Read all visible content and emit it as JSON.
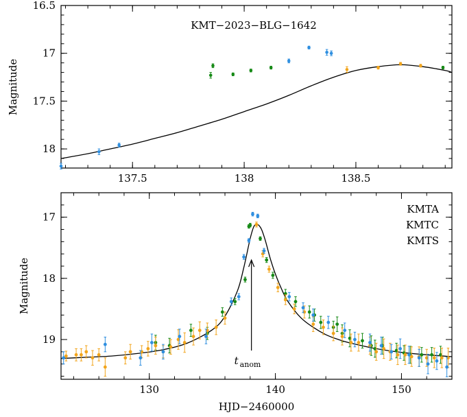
{
  "colors": {
    "KMTA": "#178a17",
    "KMTC": "#f2a51c",
    "KMTS": "#2f8fe0",
    "model": "#000000",
    "frame": "#000000"
  },
  "chart_data": [
    {
      "type": "scatter",
      "panel": "top",
      "title": "KMT−2023−BLG−1642",
      "xlabel": "",
      "ylabel": "Magnitude",
      "xlim": [
        137.18,
        138.93
      ],
      "ylim": [
        18.2,
        16.5
      ],
      "y_inverted": true,
      "x_ticks": [
        137.5,
        138,
        138.5
      ],
      "x_tick_labels": [
        "137.5",
        "138",
        "138.5"
      ],
      "y_ticks": [
        16.5,
        17,
        17.5,
        18
      ],
      "y_tick_labels": [
        "16.5",
        "17",
        "17.5",
        "18"
      ],
      "legend": "none",
      "series": [
        {
          "name": "KMTA",
          "color_key": "KMTA",
          "x": [
            137.85,
            137.86,
            137.95,
            138.03,
            138.12,
            138.89
          ],
          "y": [
            17.23,
            17.13,
            17.22,
            17.18,
            17.15,
            17.15
          ],
          "err": [
            0.03,
            0.02,
            0.015,
            0.015,
            0.015,
            0.015
          ]
        },
        {
          "name": "KMTC",
          "color_key": "KMTC",
          "x": [
            138.46,
            138.6,
            138.7,
            138.79
          ],
          "y": [
            17.17,
            17.15,
            17.11,
            17.13
          ],
          "err": [
            0.03,
            0.015,
            0.015,
            0.015
          ]
        },
        {
          "name": "KMTS",
          "color_key": "KMTS",
          "x": [
            137.18,
            137.35,
            137.44,
            138.2,
            138.29,
            138.37,
            138.39
          ],
          "y": [
            18.18,
            18.03,
            17.96,
            17.08,
            16.94,
            16.99,
            17.0
          ],
          "err": [
            0.03,
            0.03,
            0.02,
            0.02,
            0.015,
            0.03,
            0.025
          ]
        }
      ],
      "model": {
        "x": [
          137.18,
          137.3,
          137.4,
          137.5,
          137.6,
          137.7,
          137.8,
          137.9,
          138.0,
          138.1,
          138.2,
          138.3,
          138.4,
          138.5,
          138.6,
          138.7,
          138.8,
          138.9,
          138.93
        ],
        "y": [
          18.1,
          18.05,
          18.0,
          17.95,
          17.89,
          17.83,
          17.76,
          17.69,
          17.61,
          17.53,
          17.44,
          17.34,
          17.25,
          17.18,
          17.14,
          17.12,
          17.14,
          17.18,
          17.2
        ]
      }
    },
    {
      "type": "scatter",
      "panel": "bottom",
      "title": "",
      "xlabel": "HJD−2460000",
      "ylabel": "Magnitude",
      "xlim": [
        123,
        154
      ],
      "ylim": [
        19.65,
        16.6
      ],
      "y_inverted": true,
      "x_ticks": [
        130,
        140,
        150
      ],
      "x_tick_labels": [
        "130",
        "140",
        "150"
      ],
      "y_ticks": [
        17,
        18,
        19
      ],
      "y_tick_labels": [
        "17",
        "18",
        "19"
      ],
      "legend": "top-right",
      "legend_entries": [
        "KMTA",
        "KMTC",
        "KMTS"
      ],
      "annotation": {
        "text": "t",
        "subscript": "anom",
        "arrow_from": [
          138.1,
          19.18
        ],
        "arrow_to": [
          138.1,
          17.7
        ]
      },
      "series": [
        {
          "name": "KMTA",
          "color_key": "KMTA",
          "x": [
            130.5,
            131.6,
            133.3,
            134.6,
            135.8,
            136.8,
            137.6,
            137.9,
            138.0,
            138.8,
            139.3,
            139.8,
            140.8,
            141.6,
            142.7,
            143.1,
            143.6,
            144.6,
            144.9,
            145.3,
            145.9,
            146.9,
            147.6,
            147.9,
            148.5,
            149.6,
            150.2,
            150.7,
            151.6,
            152.4,
            153.1
          ],
          "y": [
            19.05,
            19.1,
            18.85,
            18.9,
            18.55,
            18.38,
            18.02,
            17.15,
            17.13,
            17.35,
            17.7,
            17.95,
            18.25,
            18.38,
            18.55,
            18.6,
            18.72,
            18.8,
            18.75,
            18.9,
            18.98,
            19.02,
            19.1,
            19.15,
            19.1,
            19.18,
            19.22,
            19.25,
            19.25,
            19.25,
            19.25
          ],
          "err": [
            0.12,
            0.12,
            0.1,
            0.1,
            0.07,
            0.05,
            0.04,
            0.03,
            0.03,
            0.03,
            0.04,
            0.05,
            0.07,
            0.08,
            0.1,
            0.1,
            0.1,
            0.1,
            0.12,
            0.14,
            0.14,
            0.12,
            0.16,
            0.14,
            0.14,
            0.12,
            0.12,
            0.14,
            0.12,
            0.12,
            0.14
          ]
        },
        {
          "name": "KMTC",
          "color_key": "KMTC",
          "x": [
            123.4,
            124.2,
            124.6,
            125.0,
            125.5,
            126.0,
            126.5,
            128.1,
            128.5,
            129.4,
            129.9,
            130.5,
            131.1,
            131.7,
            132.3,
            132.8,
            133.5,
            134.0,
            134.6,
            135.3,
            136.0,
            138.5,
            139.0,
            139.5,
            140.2,
            140.8,
            141.5,
            142.3,
            143.0,
            143.8,
            144.6,
            145.3,
            146.0,
            146.6,
            147.5,
            148.0,
            148.6,
            149.1,
            149.7,
            150.3,
            150.8,
            151.4,
            152.0,
            152.6,
            153.2,
            153.7
          ],
          "y": [
            19.27,
            19.25,
            19.25,
            19.2,
            19.3,
            19.25,
            19.45,
            19.3,
            19.2,
            19.2,
            19.15,
            19.1,
            19.2,
            19.12,
            19.0,
            19.05,
            18.95,
            18.85,
            18.85,
            18.8,
            18.65,
            17.12,
            17.6,
            17.85,
            18.15,
            18.35,
            18.5,
            18.55,
            18.75,
            18.8,
            18.9,
            18.95,
            19.05,
            19.05,
            19.1,
            19.2,
            19.15,
            19.2,
            19.25,
            19.25,
            19.28,
            19.28,
            19.3,
            19.3,
            19.3,
            19.3
          ],
          "err": [
            0.08,
            0.1,
            0.1,
            0.1,
            0.12,
            0.1,
            0.15,
            0.1,
            0.12,
            0.1,
            0.12,
            0.14,
            0.1,
            0.12,
            0.16,
            0.16,
            0.14,
            0.14,
            0.12,
            0.12,
            0.1,
            0.04,
            0.05,
            0.05,
            0.07,
            0.08,
            0.08,
            0.1,
            0.12,
            0.12,
            0.12,
            0.14,
            0.14,
            0.14,
            0.14,
            0.14,
            0.16,
            0.14,
            0.16,
            0.16,
            0.16,
            0.16,
            0.14,
            0.16,
            0.16,
            0.16
          ]
        },
        {
          "name": "KMTS",
          "color_key": "KMTS",
          "x": [
            123.2,
            126.5,
            129.3,
            130.2,
            131.1,
            132.4,
            134.5,
            136.5,
            137.1,
            137.5,
            137.9,
            138.2,
            138.6,
            139.1,
            141.1,
            142.2,
            143.0,
            144.2,
            145.5,
            146.3,
            147.5,
            148.4,
            149.2,
            149.9,
            150.6,
            151.4,
            152.1,
            152.8,
            153.6
          ],
          "y": [
            19.3,
            19.08,
            19.3,
            19.05,
            19.2,
            18.95,
            18.95,
            18.38,
            18.3,
            17.65,
            17.38,
            16.95,
            16.98,
            17.55,
            18.3,
            18.48,
            18.6,
            18.72,
            18.85,
            19.0,
            19.05,
            19.1,
            19.2,
            19.15,
            19.25,
            19.3,
            19.4,
            19.35,
            19.45
          ],
          "err": [
            0.1,
            0.12,
            0.12,
            0.14,
            0.12,
            0.12,
            0.12,
            0.06,
            0.05,
            0.04,
            0.03,
            0.03,
            0.03,
            0.04,
            0.07,
            0.08,
            0.1,
            0.1,
            0.12,
            0.12,
            0.14,
            0.14,
            0.12,
            0.16,
            0.14,
            0.14,
            0.16,
            0.14,
            0.16
          ]
        }
      ],
      "model": {
        "x": [
          123,
          125,
          127,
          129,
          131,
          133,
          135,
          136,
          137,
          137.5,
          138,
          138.3,
          138.6,
          138.9,
          139.2,
          139.6,
          140,
          140.5,
          141,
          142,
          143,
          144,
          145,
          146,
          148,
          150,
          152,
          154
        ],
        "y": [
          19.31,
          19.29,
          19.27,
          19.23,
          19.17,
          19.06,
          18.84,
          18.62,
          18.2,
          17.82,
          17.35,
          17.15,
          17.12,
          17.2,
          17.38,
          17.68,
          17.93,
          18.18,
          18.38,
          18.64,
          18.8,
          18.92,
          19.0,
          19.06,
          19.15,
          19.21,
          19.25,
          19.28
        ]
      }
    }
  ]
}
